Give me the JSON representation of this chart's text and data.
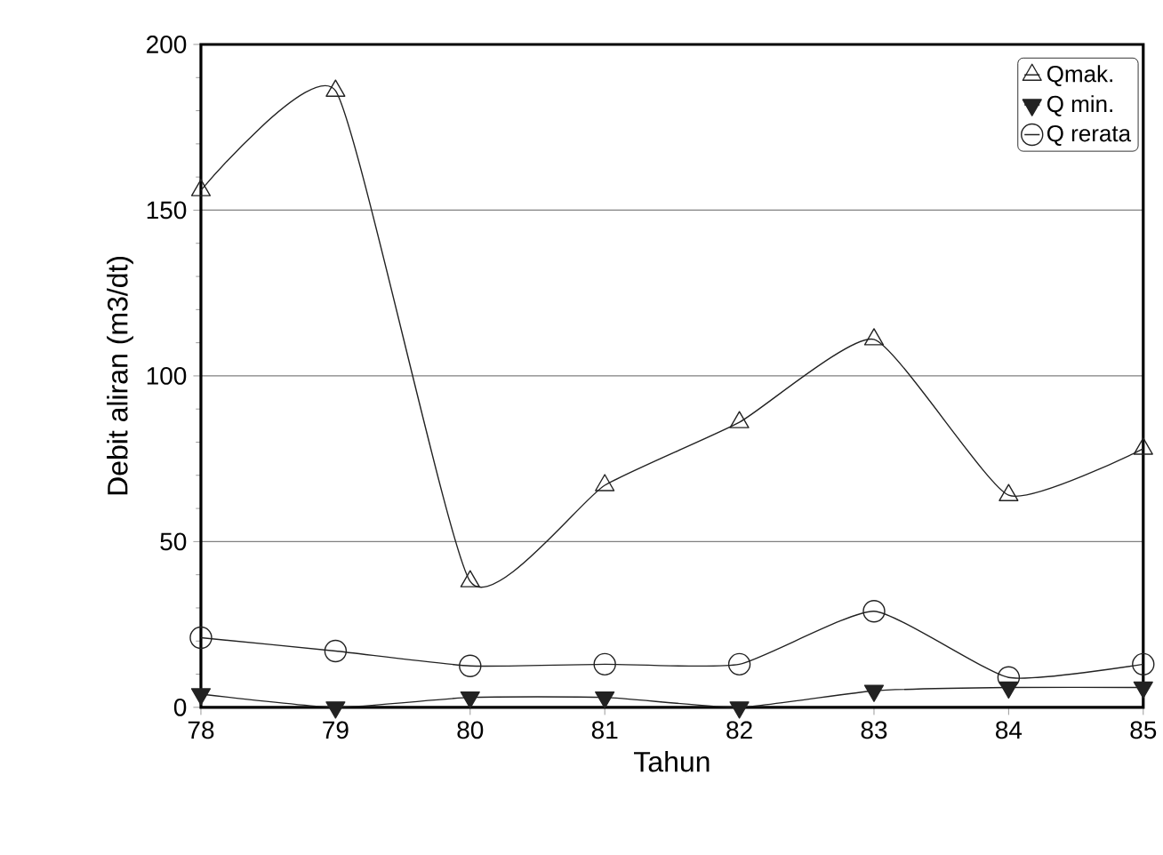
{
  "chart_data": {
    "type": "line",
    "xlabel": "Tahun",
    "ylabel": "Debit aliran  (m3/dt)",
    "x": [
      78,
      79,
      80,
      81,
      82,
      83,
      84,
      85
    ],
    "xlim": [
      78,
      85
    ],
    "xticks": [
      78,
      79,
      80,
      81,
      82,
      83,
      84,
      85
    ],
    "ylim": [
      0,
      200
    ],
    "yticks": [
      0,
      50,
      100,
      150,
      200
    ],
    "grid": "y",
    "legend": "top right",
    "series": [
      {
        "name": "Qmak.",
        "color": "#222222",
        "marker": "triangle",
        "values": [
          156,
          186,
          38,
          67,
          86,
          111,
          64,
          78
        ]
      },
      {
        "name": "Q min.",
        "color": "#222222",
        "marker": "triangle",
        "values": [
          4,
          0,
          3,
          3,
          0,
          5,
          6,
          6
        ]
      },
      {
        "name": "Q rerata",
        "color": "#222222",
        "marker": "circle",
        "values": [
          21,
          17,
          12.5,
          13,
          13,
          29,
          9,
          13
        ]
      }
    ]
  }
}
